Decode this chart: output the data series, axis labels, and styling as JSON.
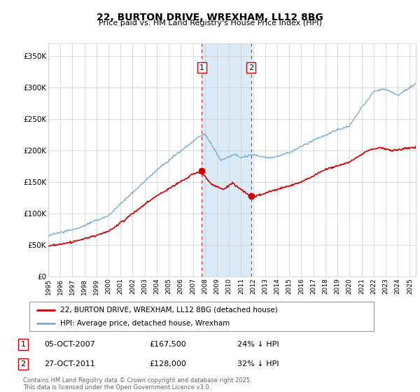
{
  "title": "22, BURTON DRIVE, WREXHAM, LL12 8BG",
  "subtitle": "Price paid vs. HM Land Registry's House Price Index (HPI)",
  "hpi_color": "#7aadd4",
  "price_color": "#cc0000",
  "shading_color": "#daeaf7",
  "marker1_date_x": 2007.75,
  "marker2_date_x": 2011.82,
  "marker1_price": 167500,
  "marker2_price": 128000,
  "ylim": [
    0,
    370000
  ],
  "xlim_start": 1995.0,
  "xlim_end": 2025.5,
  "yticks": [
    0,
    50000,
    100000,
    150000,
    200000,
    250000,
    300000,
    350000
  ],
  "ytick_labels": [
    "£0",
    "£50K",
    "£100K",
    "£150K",
    "£200K",
    "£250K",
    "£300K",
    "£350K"
  ],
  "xticks": [
    1995,
    1996,
    1997,
    1998,
    1999,
    2000,
    2001,
    2002,
    2003,
    2004,
    2005,
    2006,
    2007,
    2008,
    2009,
    2010,
    2011,
    2012,
    2013,
    2014,
    2015,
    2016,
    2017,
    2018,
    2019,
    2020,
    2021,
    2022,
    2023,
    2024,
    2025
  ],
  "legend_price_label": "22, BURTON DRIVE, WREXHAM, LL12 8BG (detached house)",
  "legend_hpi_label": "HPI: Average price, detached house, Wrexham",
  "footer_text": "Contains HM Land Registry data © Crown copyright and database right 2025.\nThis data is licensed under the Open Government Licence v3.0.",
  "table_rows": [
    {
      "num": "1",
      "date": "05-OCT-2007",
      "price": "£167,500",
      "note": "24% ↓ HPI"
    },
    {
      "num": "2",
      "date": "27-OCT-2011",
      "price": "£128,000",
      "note": "32% ↓ HPI"
    }
  ]
}
